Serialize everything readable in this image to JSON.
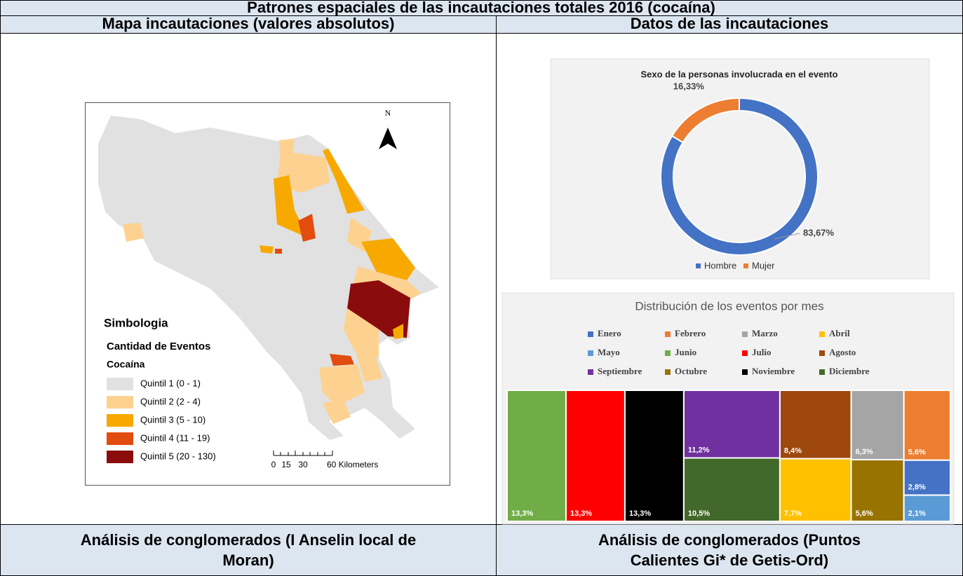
{
  "title": "Patrones espaciales de las incautaciones totales 2016 (cocaína)",
  "headers_top": [
    "Mapa incautaciones (valores absolutos)",
    "Datos de las incautaciones"
  ],
  "headers_bottom": [
    [
      "Análisis de conglomerados (I Anselin local de",
      "Moran)"
    ],
    [
      "Análisis de conglomerados (Puntos",
      "Calientes Gi* de Getis-Ord)"
    ]
  ],
  "map": {
    "north": "N",
    "legend_title": "Simbologia",
    "legend_subtitle": "Cantidad de Eventos",
    "legend_drug": "Cocaína",
    "classes": [
      {
        "label": "Quintil 1 (0 - 1)",
        "color": "#e1e1e1"
      },
      {
        "label": "Quintil 2 (2 - 4)",
        "color": "#fdd290"
      },
      {
        "label": "Quintil 3 (5 - 10)",
        "color": "#f8a900"
      },
      {
        "label": "Quintil 4 (11 - 19)",
        "color": "#e24c0e"
      },
      {
        "label": "Quintil 5 (20 - 130)",
        "color": "#8b0c0c"
      }
    ],
    "scale_labels": [
      "0",
      "15",
      "30",
      "60 Kilometers"
    ]
  },
  "chart_data": [
    {
      "type": "pie",
      "title": "Sexo de la personas involucrada en el evento",
      "categories": [
        "Hombre",
        "Mujer"
      ],
      "values": [
        83.67,
        16.33
      ],
      "value_labels": [
        "83,67%",
        "16,33%"
      ],
      "colors": [
        "#4472c4",
        "#ed7d31"
      ],
      "legend": "bottom"
    },
    {
      "type": "treemap",
      "title": "Distribución de los eventos por mes",
      "categories": [
        "Enero",
        "Febrero",
        "Marzo",
        "Abril",
        "Mayo",
        "Junio",
        "Julio",
        "Agosto",
        "Septiembre",
        "Octubre",
        "Noviembre",
        "Diciembre"
      ],
      "values": [
        2.8,
        5.6,
        6.3,
        7.7,
        2.1,
        13.3,
        13.3,
        8.4,
        11.2,
        5.6,
        13.3,
        10.5
      ],
      "value_labels": [
        "2,8%",
        "5,6%",
        "6,3%",
        "7,7%",
        "2,1%",
        "13,3%",
        "13,3%",
        "8,4%",
        "11,2%",
        "5,6%",
        "13,3%",
        "10,5%"
      ],
      "colors": [
        "#4472c4",
        "#ed7d31",
        "#a5a5a5",
        "#ffc000",
        "#5b9bd5",
        "#70ad47",
        "#ff0000",
        "#9e480e",
        "#7030a0",
        "#997300",
        "#000000",
        "#43682b"
      ],
      "legend": "top"
    }
  ]
}
